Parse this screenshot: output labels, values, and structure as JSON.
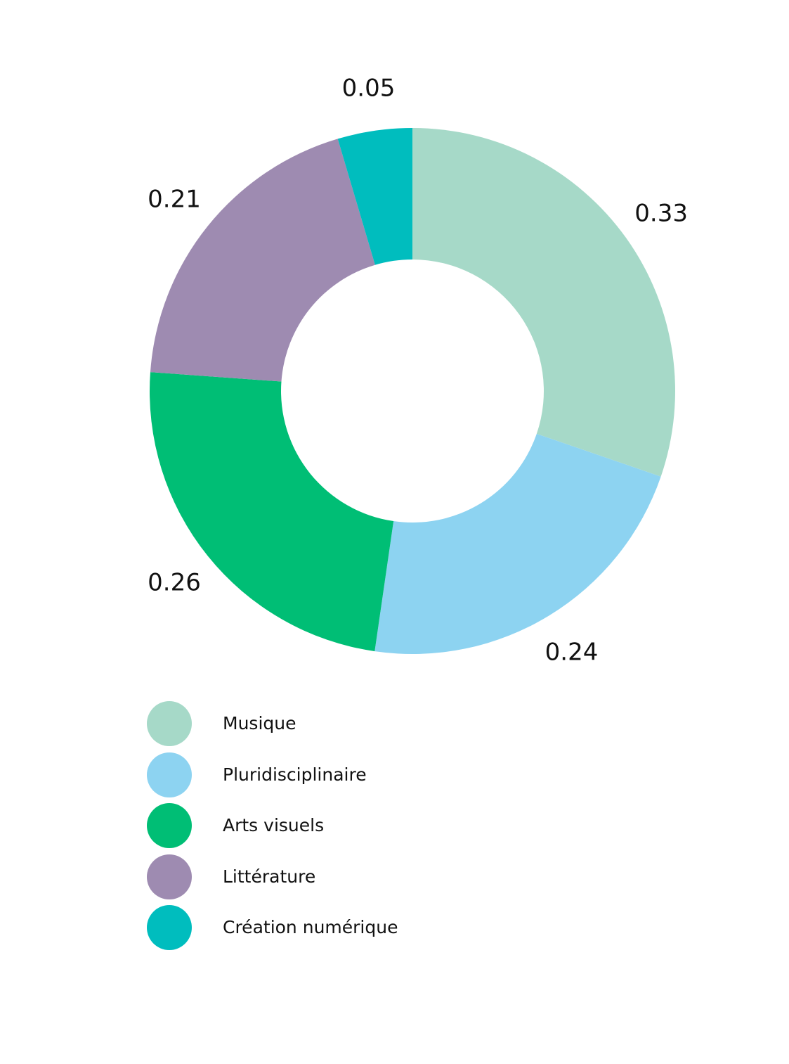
{
  "chart_data": {
    "type": "pie",
    "variant": "donut",
    "title": "",
    "series": [
      {
        "name": "",
        "labels": [
          "Musique",
          "Pluridisciplinaire",
          "Arts visuels",
          "Littérature",
          "Création numérique"
        ],
        "values": [
          0.33,
          0.24,
          0.26,
          0.21,
          0.05
        ],
        "value_labels": [
          "0.33",
          "0.24",
          "0.26",
          "0.21",
          "0.05"
        ],
        "colors": [
          "#a6d9c8",
          "#8dd3f1",
          "#00be75",
          "#9e8bb1",
          "#00bdbe"
        ]
      }
    ],
    "legend": {
      "placement": "bottom-left",
      "entries": [
        "Musique",
        "Pluridisciplinaire",
        "Arts visuels",
        "Littérature",
        "Création numérique"
      ]
    }
  }
}
